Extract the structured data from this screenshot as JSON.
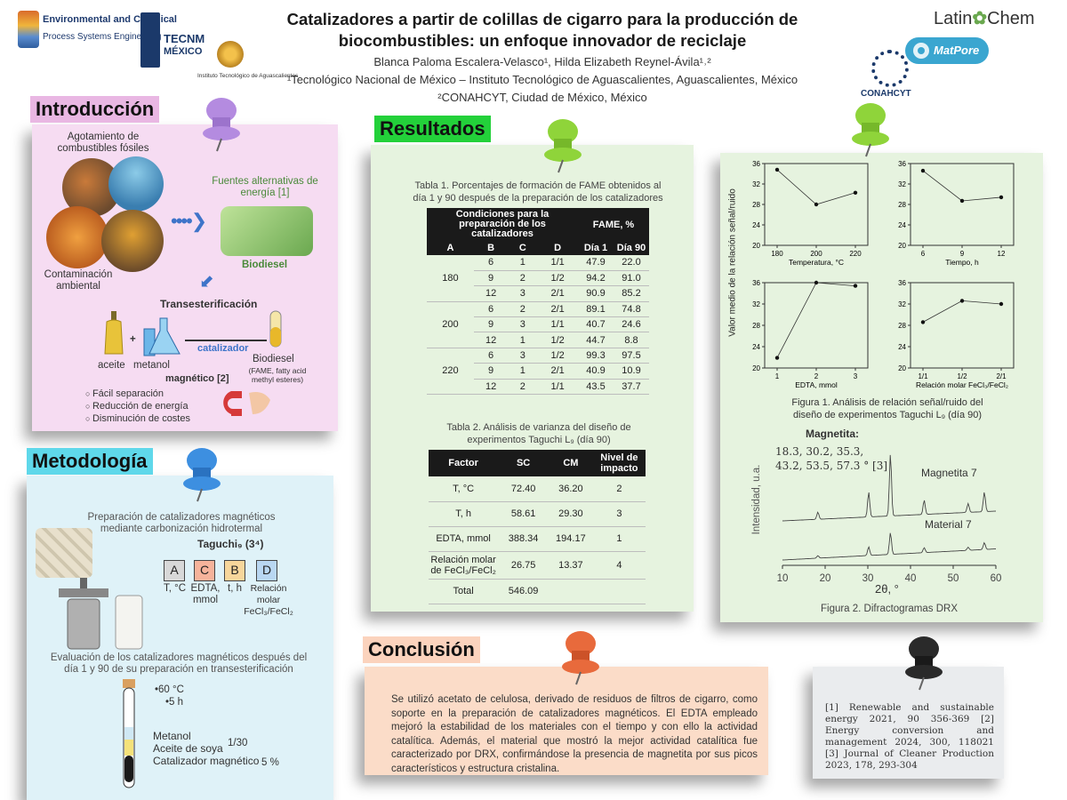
{
  "header": {
    "logo_left_line1": "Environmental and Chemical",
    "logo_left_line2": "Process Systems Engineering",
    "tecnm_line1": "TECNM",
    "tecnm_line2": "MÉXICO",
    "ita_text": "Instituto Tecnológico de Aguascalientes",
    "title_line1": "Catalizadores a partir de colillas de cigarro para la producción de",
    "title_line2": "biocombustibles: un enfoque innovador de reciclaje",
    "authors": "Blanca Paloma Escalera-Velasco¹, Hilda Elizabeth Reynel-Ávila¹˒²",
    "affiliation1": "¹Tecnológico Nacional de México – Instituto Tecnológico de Aguascalientes, Aguascalientes, México",
    "affiliation2": "²CONAHCYT, Ciudad de México, México",
    "latinchem": "Latin",
    "latinchem2": "Chem",
    "matpore": "MatPore",
    "conahcyt": "CONAHCYT"
  },
  "intro": {
    "title": "Introducción",
    "fossil": "Agotamiento de combustibles fósiles",
    "alt_energy": "Fuentes alternativas de energía [1]",
    "biodiesel_label": "Biodiesel",
    "contamination": "Contaminación ambiental",
    "transest": "Transesterificación",
    "aceite": "aceite",
    "plus": "+",
    "metanol": "metanol",
    "catalizador": "catalizador",
    "magnetico": "magnético [2]",
    "biodiesel2": "Biodiesel",
    "fame": "(FAME, fatty acid methyl esteres)",
    "bullets": [
      "Fácil separación",
      "Reducción de energía",
      "Disminución de costes"
    ]
  },
  "metodologia": {
    "title": "Metodología",
    "prep": "Preparación de catalizadores magnéticos mediante carbonización hidrotermal",
    "taguchi": "Taguchi₉ (3⁴)",
    "factors": [
      {
        "letter": "A",
        "desc": "T, °C",
        "color": "#d8d8d8"
      },
      {
        "letter": "C",
        "desc": "EDTA, mmol",
        "color": "#f6b39b"
      },
      {
        "letter": "B",
        "desc": "t, h",
        "color": "#f7d69b"
      },
      {
        "letter": "D",
        "desc": "Relación molar FeCl₃/FeCl₂",
        "color": "#b9d7f2"
      }
    ],
    "eval": "Evaluación de los catalizadores magnéticos después del día 1 y 90 de su preparación en transesterificación",
    "temp": "•60 °C",
    "time": "•5 h",
    "metanol": "Metanol",
    "aceite": "Aceite de soya",
    "catal": "Catalizador magnético",
    "ratio": "1/30",
    "pct": "5 %"
  },
  "resultados": {
    "title": "Resultados",
    "table1_caption": "Tabla 1. Porcentajes de formación de FAME obtenidos al día 1 y 90 después de la preparación de los catalizadores",
    "t1_header_cond": "Condiciones para la preparación de los catalizadores",
    "t1_header_fame": "FAME, %",
    "t1_cols": [
      "A",
      "B",
      "C",
      "D",
      "Día 1",
      "Día 90"
    ],
    "t1_groups": [
      {
        "A": "180",
        "rows": [
          [
            "6",
            "1",
            "1/1",
            "47.9",
            "22.0"
          ],
          [
            "9",
            "2",
            "1/2",
            "94.2",
            "91.0"
          ],
          [
            "12",
            "3",
            "2/1",
            "90.9",
            "85.2"
          ]
        ]
      },
      {
        "A": "200",
        "rows": [
          [
            "6",
            "2",
            "2/1",
            "89.1",
            "74.8"
          ],
          [
            "9",
            "3",
            "1/1",
            "40.7",
            "24.6"
          ],
          [
            "12",
            "1",
            "1/2",
            "44.7",
            "8.8"
          ]
        ]
      },
      {
        "A": "220",
        "rows": [
          [
            "6",
            "3",
            "1/2",
            "99.3",
            "97.5"
          ],
          [
            "9",
            "1",
            "2/1",
            "40.9",
            "10.9"
          ],
          [
            "12",
            "2",
            "1/1",
            "43.5",
            "37.7"
          ]
        ]
      }
    ],
    "table2_caption": "Tabla 2. Análisis de varianza del diseño de experimentos Taguchi L₉ (día 90)",
    "t2_cols": [
      "Factor",
      "SC",
      "CM",
      "Nivel de impacto"
    ],
    "t2_rows": [
      [
        "T, °C",
        "72.40",
        "36.20",
        "2"
      ],
      [
        "T, h",
        "58.61",
        "29.30",
        "3"
      ],
      [
        "EDTA, mmol",
        "388.34",
        "194.17",
        "1"
      ],
      [
        "Relación molar de FeCl₃/FeCl₂",
        "26.75",
        "13.37",
        "4"
      ],
      [
        "Total",
        "546.09",
        "",
        ""
      ]
    ]
  },
  "figure1": {
    "caption": "Figura 1. Análisis de relación señal/ruido del diseño de experimentos Taguchi L₉ (día 90)",
    "ylabel": "Valor medio de la relación señal/ruido"
  },
  "figure2": {
    "caption": "Figura 2. Difractogramas DRX",
    "title": "Magnetita:",
    "peaks": "18.3, 30.2, 35.3, 43.2, 53.5, 57.3 ° [3]",
    "series1": "Magnetita 7",
    "series2": "Material 7",
    "xlabel": "2θ, °",
    "ylabel": "Intensidad, u.a.",
    "xticks": [
      "10",
      "20",
      "30",
      "40",
      "50",
      "60"
    ]
  },
  "chart_data": [
    {
      "type": "scatter",
      "xlabel": "Temperatura, °C",
      "x": [
        180,
        200,
        220
      ],
      "y": [
        34.8,
        28.0,
        30.3
      ],
      "ylim": [
        20,
        36
      ],
      "xticks": [
        "180",
        "200",
        "220"
      ],
      "yticks": [
        "20",
        "24",
        "28",
        "32",
        "36"
      ]
    },
    {
      "type": "scatter",
      "xlabel": "Tiempo, h",
      "x": [
        6,
        9,
        12
      ],
      "y": [
        34.6,
        28.7,
        29.4
      ],
      "ylim": [
        20,
        36
      ],
      "xticks": [
        "6",
        "9",
        "12"
      ],
      "yticks": [
        "20",
        "24",
        "28",
        "32",
        "36"
      ]
    },
    {
      "type": "scatter",
      "xlabel": "EDTA, mmol",
      "x": [
        1,
        2,
        3
      ],
      "y": [
        21.9,
        36.0,
        35.4
      ],
      "ylim": [
        20,
        36
      ],
      "xticks": [
        "1",
        "2",
        "3"
      ],
      "yticks": [
        "20",
        "24",
        "28",
        "32",
        "36"
      ]
    },
    {
      "type": "scatter",
      "xlabel": "Relación molar FeCl₃/FeCl₂",
      "x": [
        "1/1",
        "1/2",
        "2/1"
      ],
      "y": [
        28.6,
        32.6,
        32.0
      ],
      "ylim": [
        20,
        36
      ],
      "xticks": [
        "1/1",
        "1/2",
        "2/1"
      ],
      "yticks": [
        "20",
        "24",
        "28",
        "32",
        "36"
      ]
    }
  ],
  "conclusion": {
    "title": "Conclusión",
    "text": "Se utilizó acetato de celulosa, derivado de residuos de filtros de cigarro, como soporte en la preparación de catalizadores magnéticos. El EDTA empleado mejoró la estabilidad de los materiales con el tiempo y con ello la actividad catalítica. Además, el material que mostró la mejor actividad catalítica fue caracterizado por DRX, confirmándose la presencia de magnetita por sus picos característicos y estructura cristalina."
  },
  "references": {
    "text": "[1] Renewable and sustainable energy 2021, 90 356-369 [2] Energy conversion and management 2024, 300, 118021 [3] Journal of Cleaner Production 2023, 178, 293-304"
  },
  "colors": {
    "pin_purple": "#b48be0",
    "pin_blue": "#3d8fe0",
    "pin_green": "#8fd43a",
    "pin_orange": "#e86a3c",
    "pin_black": "#2a2a2a"
  }
}
